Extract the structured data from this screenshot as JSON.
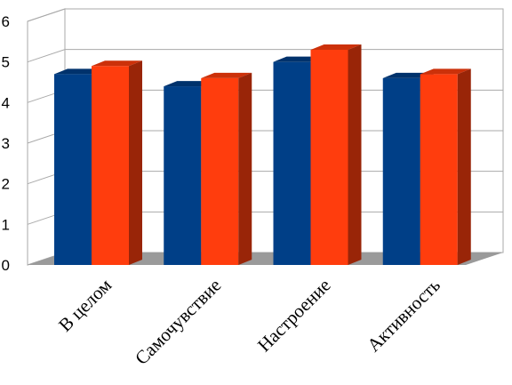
{
  "chart_data": {
    "type": "bar",
    "style": "3d-clustered",
    "categories": [
      "В целом",
      "Самочувствие",
      "Настроение",
      "Активность"
    ],
    "series": [
      {
        "values": [
          4.7,
          4.4,
          5.0,
          4.6
        ],
        "color": "#003F87"
      },
      {
        "values": [
          4.9,
          4.6,
          5.3,
          4.7
        ],
        "color": "#FF3D0D"
      }
    ],
    "ylim": [
      0,
      6
    ],
    "yticks": [
      0,
      1,
      2,
      3,
      4,
      5,
      6
    ],
    "grid": true,
    "legend": "none",
    "colors": {
      "wall": "#ffffff",
      "floor": "#9A9A9A",
      "grid": "#AAAAAA"
    }
  }
}
